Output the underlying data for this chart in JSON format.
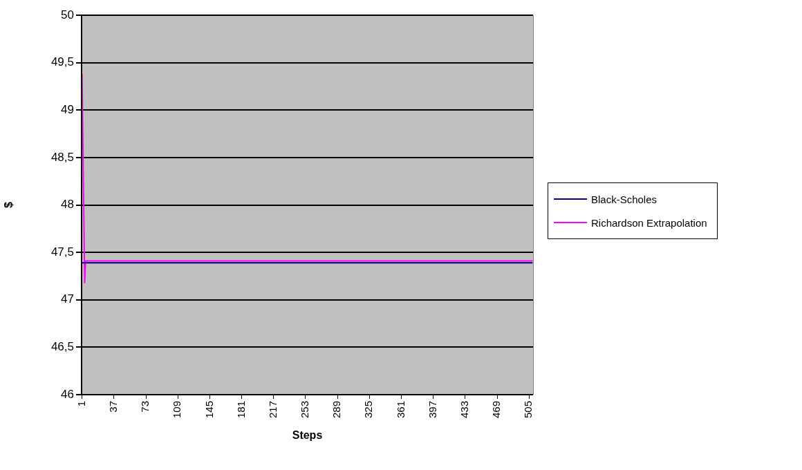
{
  "chart_data": {
    "type": "line",
    "xlabel": "Steps",
    "ylabel": "$",
    "xlim": [
      0.5,
      509.5
    ],
    "xticks": [
      1,
      37,
      73,
      109,
      145,
      181,
      217,
      253,
      289,
      325,
      361,
      397,
      433,
      469,
      505
    ],
    "ylim": [
      46,
      50
    ],
    "yticks": [
      46,
      {
        "value": 46.5,
        "label": "46,5"
      },
      47,
      {
        "value": 47.5,
        "label": "47,5"
      },
      48,
      {
        "value": 48.5,
        "label": "48,5"
      },
      49,
      {
        "value": 49.5,
        "label": "49,5"
      },
      50
    ],
    "grid": "y",
    "legend": "right",
    "marker": "none",
    "line_style": "solid",
    "series": [
      {
        "name": "Black-Scholes",
        "color": "#000080",
        "x": [
          1,
          509
        ],
        "values": [
          47.39,
          47.39
        ]
      },
      {
        "name": "Richardson Extrapolation",
        "color": "#ff00ff",
        "x": [
          1,
          4,
          5,
          509
        ],
        "values": [
          49.38,
          47.18,
          47.41,
          47.41
        ]
      }
    ]
  }
}
